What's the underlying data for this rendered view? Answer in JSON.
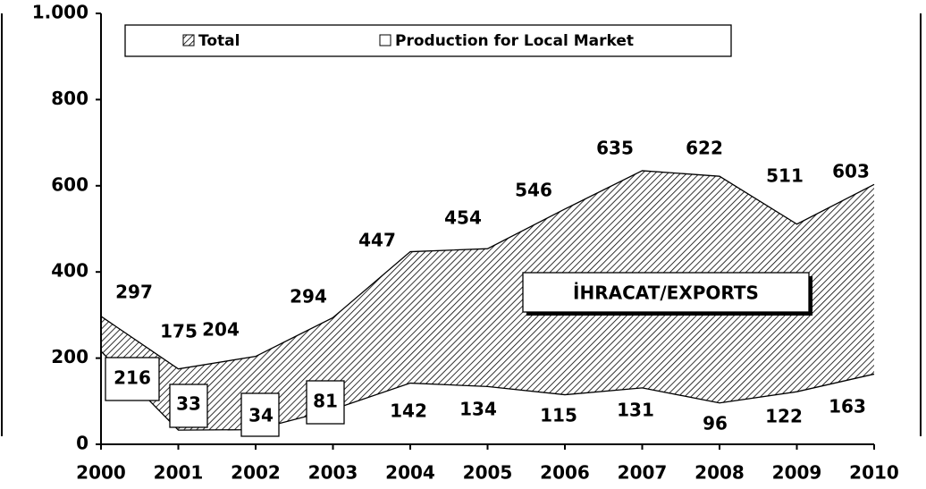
{
  "chart_data": {
    "type": "area",
    "categories": [
      "2000",
      "2001",
      "2002",
      "2003",
      "2004",
      "2005",
      "2006",
      "2007",
      "2008",
      "2009",
      "2010"
    ],
    "series": [
      {
        "name": "Total",
        "color": "#000000",
        "values": [
          297,
          175,
          204,
          294,
          447,
          454,
          546,
          635,
          622,
          511,
          603
        ]
      },
      {
        "name": "Production for Local Market",
        "color": "#ffffff",
        "values": [
          216,
          33,
          34,
          81,
          142,
          134,
          115,
          131,
          96,
          122,
          163
        ]
      }
    ],
    "annotation": "İHRACAT/EXPORTS",
    "ylim": [
      0,
      1000
    ],
    "yticks": [
      0,
      200,
      400,
      600,
      800,
      {
        "value": 1000,
        "label": "1.000"
      }
    ],
    "grid": false,
    "legend": "top"
  }
}
